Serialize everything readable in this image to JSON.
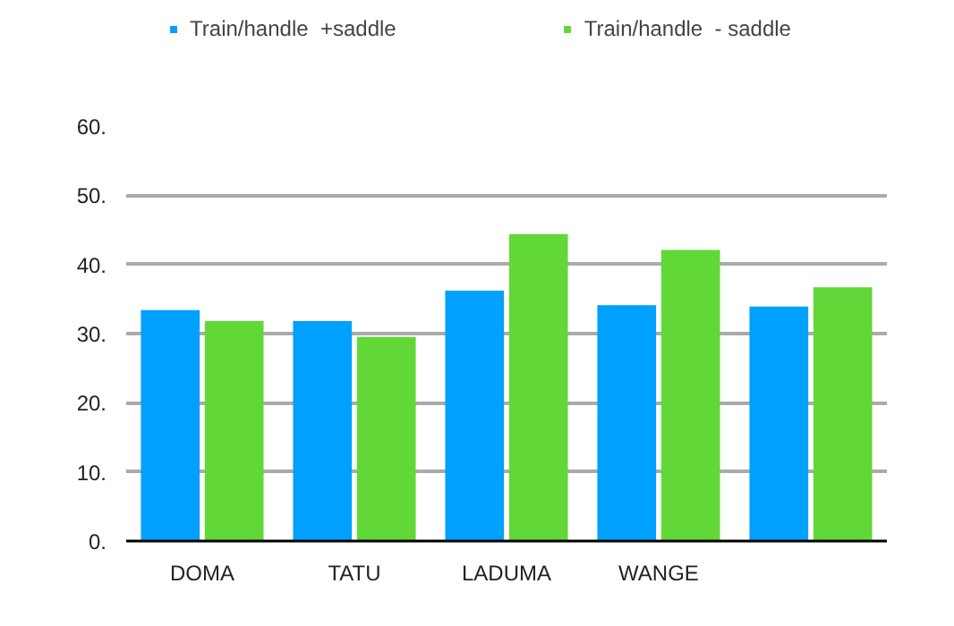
{
  "chart_data": {
    "type": "bar",
    "categories": [
      "DOMA",
      "TATU",
      "LADUMA",
      "WANGE",
      null
    ],
    "series": [
      {
        "name": "Train/handle  +saddle",
        "color": "#00a0ff",
        "values": [
          33.4,
          31.8,
          36.2,
          34.1,
          33.9
        ]
      },
      {
        "name": "Train/handle  - saddle",
        "color": "#62d838",
        "values": [
          31.8,
          29.5,
          44.4,
          42.1,
          36.7
        ]
      }
    ],
    "ylim": [
      0,
      60
    ],
    "yticks": [
      {
        "value": 0,
        "label": "0."
      },
      {
        "value": 10,
        "label": "10."
      },
      {
        "value": 20,
        "label": "20."
      },
      {
        "value": 30,
        "label": "30."
      },
      {
        "value": 40,
        "label": "40."
      },
      {
        "value": 50,
        "label": "50."
      },
      {
        "value": 60,
        "label": "60."
      }
    ],
    "grid": "y",
    "legend": "top"
  }
}
